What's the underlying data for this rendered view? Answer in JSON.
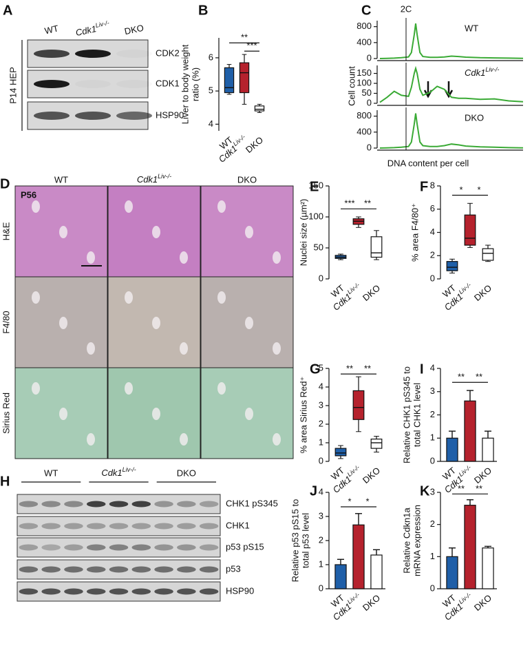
{
  "blot_a": {
    "panel": "A",
    "columns": [
      "WT",
      {
        "base": "Cdk1",
        "sup": "Liv-/-"
      },
      "DKO"
    ],
    "rows": [
      "CDK2",
      "CDK1",
      "HSP90"
    ],
    "sample": "P14 HEP"
  },
  "histology": {
    "panel": "D",
    "columns": [
      "WT",
      {
        "base": "Cdk1",
        "sup": "Liv-/-"
      },
      "DKO"
    ],
    "rows": [
      "H&E",
      "F4/80",
      "Sirius Red"
    ],
    "age": "P56"
  },
  "blot_h": {
    "panel": "H",
    "columns": [
      "WT",
      {
        "base": "Cdk1",
        "sup": "Liv-/-"
      },
      "DKO"
    ],
    "rows": [
      "CHK1 pS345",
      "CHK1",
      "p53 pS15",
      "p53",
      "HSP90"
    ]
  },
  "chart_data": [
    {
      "panel": "B",
      "type": "box",
      "categories": [
        "WT",
        {
          "base": "Cdk1",
          "sup": "Liv-/-"
        },
        "DKO"
      ],
      "values": [
        [
          4.9,
          4.95,
          5.1,
          5.7,
          5.8
        ],
        [
          4.6,
          4.95,
          5.55,
          5.85,
          6.1
        ],
        [
          4.35,
          4.4,
          4.45,
          4.55,
          4.6
        ]
      ],
      "colors": [
        "#1f5fa8",
        "#b5222d",
        "#ffffff"
      ],
      "ylabel": [
        "Liver to body weight",
        "ratio (%)"
      ],
      "ylim": [
        3.8,
        6.6
      ],
      "yticks": [
        4,
        5,
        6
      ],
      "significance": [
        "**",
        "***"
      ]
    },
    {
      "panel": "C",
      "type": "line",
      "annotation": "2C",
      "label": "WT",
      "color": "#3aaa35",
      "x": [
        0,
        5,
        10,
        15,
        20,
        22,
        24,
        25,
        26,
        28,
        30,
        35,
        40,
        45,
        50,
        55,
        60,
        70,
        80,
        90,
        100
      ],
      "values": [
        0,
        5,
        10,
        20,
        40,
        150,
        600,
        880,
        600,
        150,
        50,
        30,
        30,
        40,
        60,
        50,
        35,
        20,
        15,
        10,
        5
      ],
      "xlim": [
        0,
        100
      ],
      "ylim": [
        0,
        950
      ],
      "yticks": [
        0,
        400,
        800
      ]
    },
    {
      "type": "line",
      "label": {
        "base": "Cdk1",
        "sup": "Liv-/-"
      },
      "ylabel": "Cell count",
      "color": "#3aaa35",
      "x": [
        0,
        5,
        10,
        15,
        20,
        22,
        24,
        25,
        26,
        28,
        30,
        35,
        40,
        45,
        50,
        55,
        60,
        70,
        80,
        90,
        100
      ],
      "values": [
        5,
        30,
        60,
        40,
        35,
        80,
        150,
        175,
        150,
        70,
        40,
        55,
        85,
        70,
        30,
        25,
        25,
        20,
        22,
        12,
        8
      ],
      "xlim": [
        0,
        100
      ],
      "ylim": [
        0,
        190
      ],
      "yticks": [
        0,
        50,
        100,
        150
      ]
    },
    {
      "type": "line",
      "label": "DKO",
      "xlabel": "DNA content per cell",
      "color": "#3aaa35",
      "x": [
        0,
        5,
        10,
        15,
        20,
        22,
        24,
        25,
        26,
        28,
        30,
        35,
        40,
        45,
        50,
        55,
        60,
        70,
        80,
        90,
        100
      ],
      "values": [
        0,
        5,
        10,
        20,
        40,
        150,
        600,
        870,
        600,
        150,
        60,
        40,
        40,
        60,
        100,
        80,
        50,
        30,
        20,
        10,
        5
      ],
      "xlim": [
        0,
        100
      ],
      "ylim": [
        0,
        950
      ],
      "yticks": [
        0,
        400,
        800
      ]
    },
    {
      "panel": "E",
      "type": "box",
      "categories": [
        "WT",
        {
          "base": "Cdk1",
          "sup": "Liv-/-"
        },
        "DKO"
      ],
      "values": [
        [
          31,
          33,
          35,
          38,
          40
        ],
        [
          83,
          88,
          93,
          97,
          100
        ],
        [
          31,
          35,
          42,
          68,
          78
        ]
      ],
      "colors": [
        "#1f5fa8",
        "#b5222d",
        "#ffffff"
      ],
      "ylabel": [
        "Nuclei size (µm²)"
      ],
      "ylim": [
        0,
        150
      ],
      "yticks": [
        0,
        50,
        100,
        150
      ],
      "significance": [
        "***",
        "**"
      ]
    },
    {
      "panel": "F",
      "type": "box",
      "categories": [
        "WT",
        {
          "base": "Cdk1",
          "sup": "Liv-/-"
        },
        "DKO"
      ],
      "values": [
        [
          0.5,
          0.7,
          1.0,
          1.5,
          1.7
        ],
        [
          2.7,
          2.9,
          3.5,
          5.5,
          6.5
        ],
        [
          1.5,
          1.6,
          2.2,
          2.6,
          2.9
        ]
      ],
      "colors": [
        "#1f5fa8",
        "#b5222d",
        "#ffffff"
      ],
      "ylabel": [
        "% area F4/80⁺"
      ],
      "ylim": [
        0,
        8
      ],
      "yticks": [
        0,
        2,
        4,
        6,
        8
      ],
      "significance": [
        "*",
        "*"
      ]
    },
    {
      "panel": "G",
      "type": "box",
      "categories": [
        "WT",
        {
          "base": "Cdk1",
          "sup": "Liv-/-"
        },
        "DKO"
      ],
      "values": [
        [
          0.15,
          0.3,
          0.45,
          0.7,
          0.85
        ],
        [
          1.6,
          2.25,
          2.9,
          3.8,
          4.55
        ],
        [
          0.5,
          0.7,
          1.0,
          1.2,
          1.35
        ]
      ],
      "colors": [
        "#1f5fa8",
        "#b5222d",
        "#ffffff"
      ],
      "ylabel": [
        "% area Sirius Red⁺"
      ],
      "ylim": [
        0,
        5
      ],
      "yticks": [
        0,
        1,
        2,
        3,
        4,
        5
      ],
      "significance": [
        "**",
        "**"
      ]
    },
    {
      "panel": "I",
      "type": "bar",
      "categories": [
        "WT",
        {
          "base": "Cdk1",
          "sup": "Liv-/-"
        },
        "DKO"
      ],
      "values": [
        1,
        2.6,
        1
      ],
      "errors": [
        0.3,
        0.45,
        0.3
      ],
      "colors": [
        "#1f5fa8",
        "#b5222d",
        "#ffffff"
      ],
      "ylabel": [
        "Relative CHK1 pS345 to",
        "total CHK1 level"
      ],
      "ylim": [
        0,
        4
      ],
      "yticks": [
        0,
        1,
        2,
        3,
        4
      ],
      "significance": [
        "**",
        "**"
      ]
    },
    {
      "panel": "J",
      "type": "bar",
      "categories": [
        "WT",
        {
          "base": "Cdk1",
          "sup": "Liv-/-"
        },
        "DKO"
      ],
      "values": [
        1,
        2.65,
        1.4
      ],
      "errors": [
        0.22,
        0.47,
        0.22
      ],
      "colors": [
        "#1f5fa8",
        "#b5222d",
        "#ffffff"
      ],
      "ylabel": [
        "Relative p53 pS15 to",
        "total p53 level"
      ],
      "ylim": [
        0,
        4
      ],
      "yticks": [
        0,
        1,
        2,
        3,
        4
      ],
      "significance": [
        "*",
        "*"
      ]
    },
    {
      "panel": "K",
      "type": "bar",
      "categories": [
        "WT",
        {
          "base": "Cdk1",
          "sup": "Liv-/-"
        },
        "DKO"
      ],
      "values": [
        1,
        2.6,
        1.27
      ],
      "errors": [
        0.27,
        0.17,
        0.05
      ],
      "colors": [
        "#1f5fa8",
        "#b5222d",
        "#ffffff"
      ],
      "ylabel": [
        "Relative Cdkn1a",
        "mRNA expression"
      ],
      "ylim": [
        0,
        3
      ],
      "yticks": [
        0,
        1,
        2,
        3
      ],
      "significance": [
        "**",
        "**"
      ]
    }
  ]
}
